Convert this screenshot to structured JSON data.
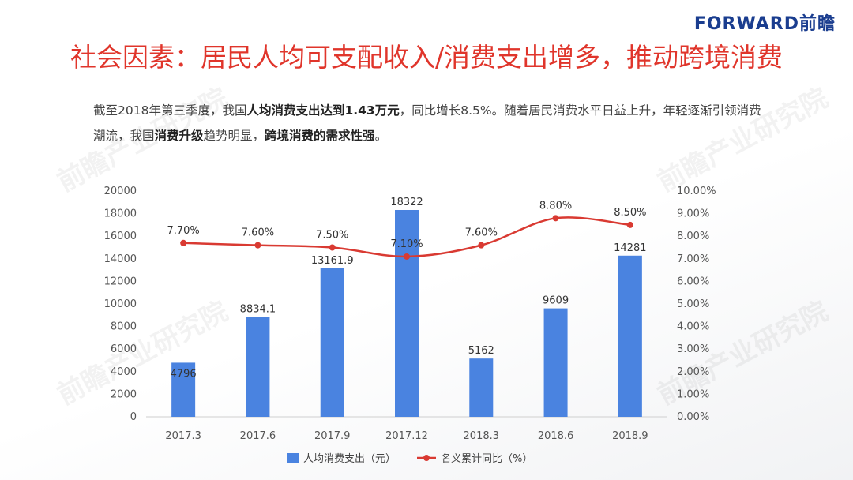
{
  "logo": "FORWARD前瞻",
  "title": "社会因素：居民人均可支配收入/消费支出增多，推动跨境消费",
  "paragraph": {
    "p1": "截至2018年第三季度，我国",
    "b1": "人均消费支出达到1.43万元",
    "p2": "，同比增长8.5%。随着居民消费水平日益上升，年轻逐渐引领消费潮流，我国",
    "b2": "消费升级",
    "p3": "趋势明显，",
    "b3": "跨境消费的需求性强",
    "p4": "。"
  },
  "watermark": "前瞻产业研究院",
  "colors": {
    "bar": "#4a83e0",
    "line": "#d93a32",
    "title": "#e0352b"
  },
  "chart_data": {
    "type": "bar",
    "categories": [
      "2017.3",
      "2017.6",
      "2017.9",
      "2017.12",
      "2018.3",
      "2018.6",
      "2018.9"
    ],
    "series": [
      {
        "name": "人均消费支出（元）",
        "type": "bar",
        "axis": "left",
        "values": [
          4796,
          8834.1,
          13161.9,
          18322,
          5162,
          9609,
          14281
        ],
        "labels": [
          "4796",
          "8834.1",
          "13161.9",
          "18322",
          "5162",
          "9609",
          "14281"
        ]
      },
      {
        "name": "名义累计同比（%）",
        "type": "line",
        "axis": "right",
        "values": [
          7.7,
          7.6,
          7.5,
          7.1,
          7.6,
          8.8,
          8.5
        ],
        "labels": [
          "7.70%",
          "7.60%",
          "7.50%",
          "7.10%",
          "7.60%",
          "8.80%",
          "8.50%"
        ]
      }
    ],
    "ylim": [
      0,
      20000
    ],
    "y_ticks": [
      "0",
      "2000",
      "4000",
      "6000",
      "8000",
      "10000",
      "12000",
      "14000",
      "16000",
      "18000",
      "20000"
    ],
    "y2lim": [
      0,
      10
    ],
    "y2_ticks": [
      "0.00%",
      "1.00%",
      "2.00%",
      "3.00%",
      "4.00%",
      "5.00%",
      "6.00%",
      "7.00%",
      "8.00%",
      "9.00%",
      "10.00%"
    ],
    "legend_position": "bottom",
    "grid": false
  }
}
